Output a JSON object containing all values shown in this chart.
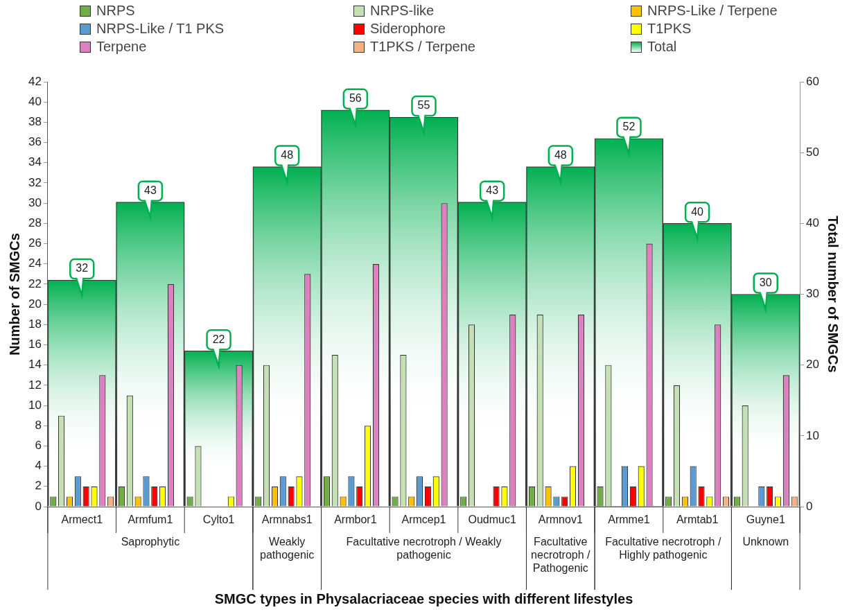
{
  "chart_data": {
    "type": "bar",
    "ylabel": "Number of SMGCs",
    "y2label": "Total number of SMGCs",
    "categories": [
      "Armect1",
      "Armfum1",
      "Cylto1",
      "Armnabs1",
      "Armbor1",
      "Armcep1",
      "Oudmuc1",
      "Armnov1",
      "Armme1",
      "Armtab1",
      "Guyne1"
    ],
    "series": [
      {
        "name": "NRPS",
        "color": "#70ad47",
        "values": [
          1,
          2,
          1,
          1,
          3,
          1,
          1,
          2,
          2,
          1,
          1
        ]
      },
      {
        "name": "NRPS-like",
        "color": "#c5e0b4",
        "values": [
          9,
          11,
          6,
          14,
          15,
          15,
          18,
          19,
          14,
          12,
          10
        ]
      },
      {
        "name": "NRPS-Like / Terpene",
        "color": "#ffc000",
        "values": [
          1,
          1,
          0,
          2,
          1,
          1,
          0,
          2,
          0,
          1,
          0
        ]
      },
      {
        "name": "NRPS-Like / T1 PKS",
        "color": "#5b9bd5",
        "values": [
          3,
          3,
          0,
          3,
          3,
          3,
          0,
          1,
          4,
          4,
          2
        ]
      },
      {
        "name": "Siderophore",
        "color": "#ff0000",
        "values": [
          2,
          2,
          0,
          2,
          2,
          2,
          2,
          1,
          2,
          2,
          2
        ]
      },
      {
        "name": "T1PKS",
        "color": "#ffff00",
        "values": [
          2,
          2,
          1,
          3,
          8,
          3,
          2,
          4,
          4,
          1,
          1
        ]
      },
      {
        "name": "Terpene",
        "color": "#df7fc0",
        "values": [
          13,
          22,
          14,
          23,
          24,
          30,
          19,
          19,
          26,
          18,
          13
        ]
      },
      {
        "name": "T1PKS / Terpene",
        "color": "#f4b183",
        "values": [
          1,
          0,
          0,
          0,
          0,
          0,
          0,
          0,
          0,
          1,
          1
        ]
      },
      {
        "name": "Total",
        "color": "#00b050",
        "axis": "y2",
        "values": [
          32,
          43,
          22,
          48,
          56,
          55,
          43,
          48,
          52,
          40,
          30
        ],
        "value_labels": [
          "32",
          "43",
          "22",
          "48",
          "56",
          "55",
          "43",
          "48",
          "52",
          "40",
          "30"
        ]
      }
    ],
    "ylim": [
      0,
      42
    ],
    "yticks": [
      0,
      2,
      4,
      6,
      8,
      10,
      12,
      14,
      16,
      18,
      20,
      22,
      24,
      26,
      28,
      30,
      32,
      34,
      36,
      38,
      40,
      42
    ],
    "y2lim": [
      0,
      60
    ],
    "y2ticks": [
      0,
      10,
      20,
      30,
      40,
      50,
      60
    ],
    "grid": false,
    "legend": "top",
    "annotations": [
      "Saprophytic",
      "Weakly pathogenic",
      "Facultative necrotroph / Weakly pathogenic",
      "Facultative necrotroph / Pathogenic",
      "Facultative necrotroph / Highly pathogenic",
      "Unknown",
      "SMGC types in Physalacriaceae species with different lifestyles"
    ]
  }
}
